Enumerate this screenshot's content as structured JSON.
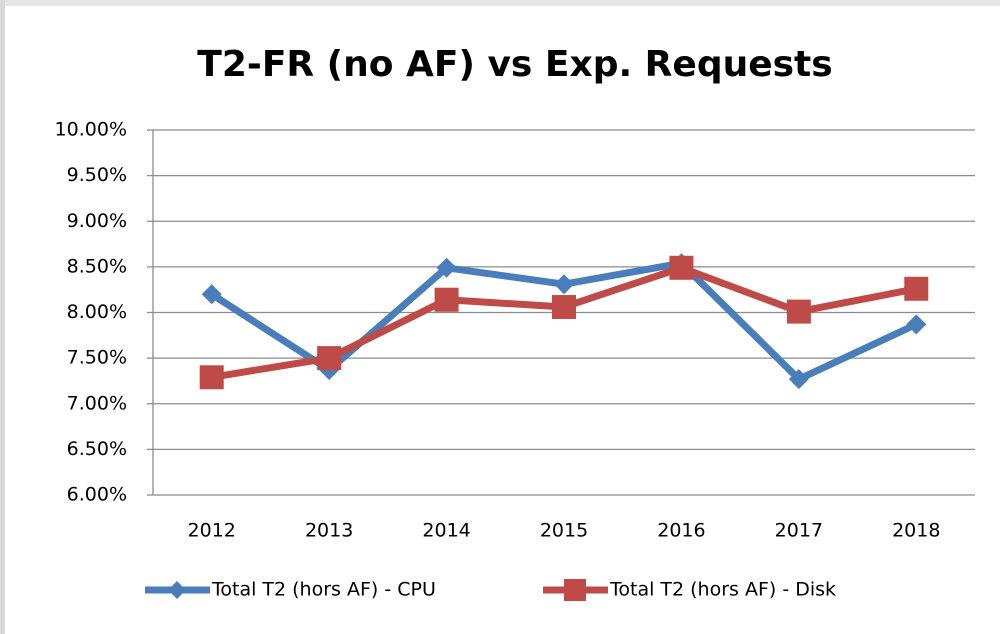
{
  "chart_data": {
    "type": "line",
    "title": "T2-FR (no AF) vs Exp. Requests",
    "categories": [
      "2012",
      "2013",
      "2014",
      "2015",
      "2016",
      "2017",
      "2018"
    ],
    "series": [
      {
        "name": "Total T2 (hors AF) - CPU",
        "color": "#4a7ebb",
        "marker": "diamond",
        "values": [
          8.2,
          7.37,
          8.49,
          8.31,
          8.54,
          7.27,
          7.87
        ]
      },
      {
        "name": "Total T2 (hors AF) - Disk",
        "color": "#be4b48",
        "marker": "square",
        "values": [
          7.29,
          7.5,
          8.14,
          8.06,
          8.49,
          8.01,
          8.26
        ]
      }
    ],
    "ylim": [
      6,
      10
    ],
    "yticks": [
      {
        "value": 6,
        "label": "6.00%"
      },
      {
        "value": 6.5,
        "label": "6.50%"
      },
      {
        "value": 7,
        "label": "7.00%"
      },
      {
        "value": 7.5,
        "label": "7.50%"
      },
      {
        "value": 8,
        "label": "8.00%"
      },
      {
        "value": 8.5,
        "label": "8.50%"
      },
      {
        "value": 9,
        "label": "9.00%"
      },
      {
        "value": 9.5,
        "label": "9.50%"
      },
      {
        "value": 10,
        "label": "10.00%"
      }
    ],
    "grid": true,
    "legend": "bottom"
  }
}
